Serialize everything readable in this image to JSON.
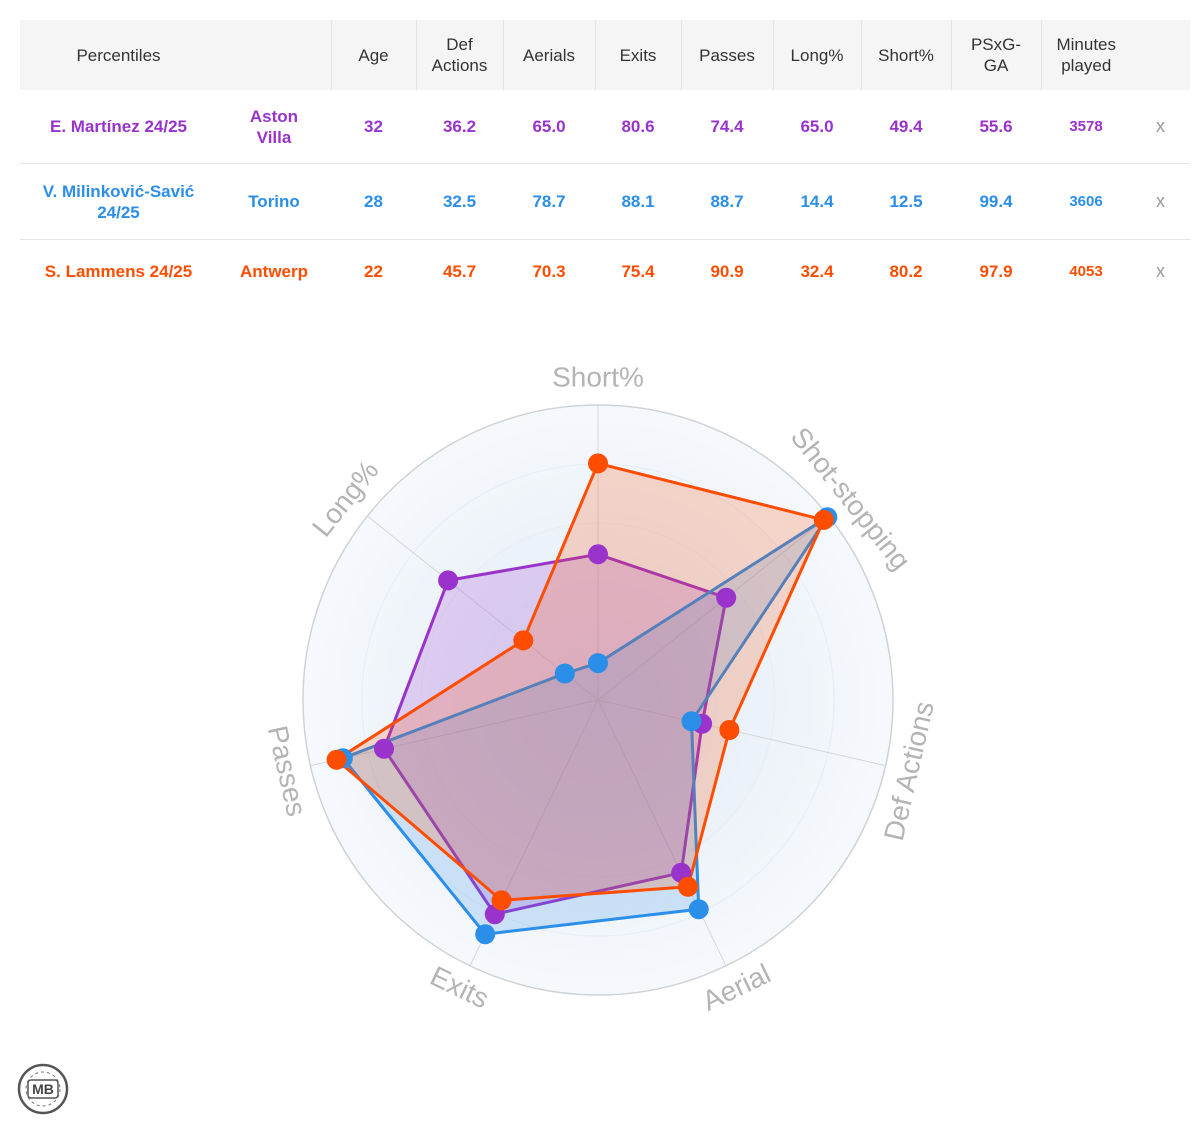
{
  "table": {
    "headers": [
      "Percentiles",
      "",
      "Age",
      "Def\nActions",
      "Aerials",
      "Exits",
      "Passes",
      "Long%",
      "Short%",
      "PSxG-\nGA",
      "Minutes\nplayed",
      ""
    ],
    "rows": [
      {
        "player": "E. Martínez 24/25",
        "team": "Aston\nVilla",
        "age": "32",
        "def_actions": "36.2",
        "aerials": "65.0",
        "exits": "80.6",
        "passes": "74.4",
        "long_pct": "65.0",
        "short_pct": "49.4",
        "psxg_ga": "55.6",
        "minutes": "3578",
        "remove": "x",
        "color": "#9933cc"
      },
      {
        "player": "V. Milinković-Savić\n24/25",
        "team": "Torino",
        "age": "28",
        "def_actions": "32.5",
        "aerials": "78.7",
        "exits": "88.1",
        "passes": "88.7",
        "long_pct": "14.4",
        "short_pct": "12.5",
        "psxg_ga": "99.4",
        "minutes": "3606",
        "remove": "x",
        "color": "#2b8ee8"
      },
      {
        "player": "S. Lammens 24/25",
        "team": "Antwerp",
        "age": "22",
        "def_actions": "45.7",
        "aerials": "70.3",
        "exits": "75.4",
        "passes": "90.9",
        "long_pct": "32.4",
        "short_pct": "80.2",
        "psxg_ga": "97.9",
        "minutes": "4053",
        "remove": "x",
        "color": "#ff4d00"
      }
    ]
  },
  "chart_data": {
    "type": "radar",
    "axes": [
      "Short%",
      "Shot-stopping",
      "Def Actions",
      "Aerial",
      "Exits",
      "Passes",
      "Long%"
    ],
    "range": [
      0,
      100
    ],
    "series": [
      {
        "name": "E. Martínez 24/25",
        "color": "#9933cc",
        "values": [
          49.4,
          55.6,
          36.2,
          65.0,
          80.6,
          74.4,
          65.0
        ]
      },
      {
        "name": "V. Milinković-Savić 24/25",
        "color": "#2b8ee8",
        "values": [
          12.5,
          99.4,
          32.5,
          78.7,
          88.1,
          88.7,
          14.4
        ]
      },
      {
        "name": "S. Lammens 24/25",
        "color": "#ff4d00",
        "values": [
          80.2,
          97.9,
          45.7,
          70.3,
          75.4,
          90.9,
          32.4
        ]
      }
    ]
  },
  "logo": {
    "text": "MB"
  }
}
